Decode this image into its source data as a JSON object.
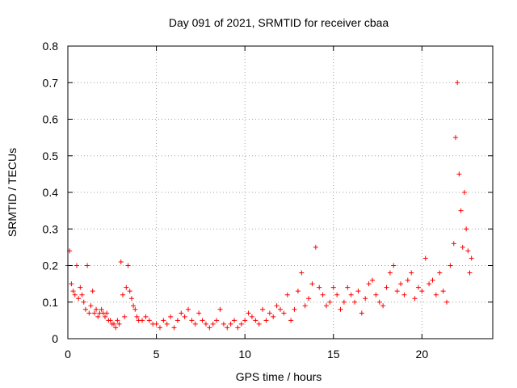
{
  "chart_data": {
    "type": "scatter",
    "title": "Day 091 of 2021, SRMTID for receiver cbaa",
    "xlabel": "GPS time / hours",
    "ylabel": "SRMTID / TECUs",
    "xlim": [
      0,
      24
    ],
    "ylim": [
      0,
      0.8
    ],
    "xticks": [
      0,
      5,
      10,
      15,
      20
    ],
    "xtick_labels": [
      "0",
      "5",
      "10",
      "15",
      "20"
    ],
    "yticks": [
      0,
      0.1,
      0.2,
      0.3,
      0.4,
      0.5,
      0.6,
      0.7,
      0.8
    ],
    "ytick_labels": [
      "0",
      "0.1",
      "0.2",
      "0.3",
      "0.4",
      "0.5",
      "0.6",
      "0.7",
      "0.8"
    ],
    "grid": true,
    "marker": "+",
    "colors": {
      "series": "#ff0000",
      "grid": "#a0a0a0",
      "axis": "#000000"
    },
    "series": [
      {
        "name": "SRMTID",
        "x": [
          0.0,
          0.1,
          0.2,
          0.3,
          0.4,
          0.5,
          0.6,
          0.7,
          0.8,
          0.9,
          1.0,
          1.1,
          1.2,
          1.3,
          1.4,
          1.5,
          1.6,
          1.7,
          1.8,
          1.9,
          2.0,
          2.1,
          2.2,
          2.3,
          2.4,
          2.5,
          2.6,
          2.7,
          2.8,
          2.9,
          3.0,
          3.1,
          3.2,
          3.3,
          3.4,
          3.5,
          3.6,
          3.7,
          3.8,
          3.9,
          4.0,
          4.2,
          4.4,
          4.6,
          4.8,
          5.0,
          5.2,
          5.4,
          5.6,
          5.8,
          6.0,
          6.2,
          6.4,
          6.6,
          6.8,
          7.0,
          7.2,
          7.4,
          7.6,
          7.8,
          8.0,
          8.2,
          8.4,
          8.6,
          8.8,
          9.0,
          9.2,
          9.4,
          9.6,
          9.8,
          10.0,
          10.2,
          10.4,
          10.6,
          10.8,
          11.0,
          11.2,
          11.4,
          11.6,
          11.8,
          12.0,
          12.2,
          12.4,
          12.6,
          12.8,
          13.0,
          13.2,
          13.4,
          13.6,
          13.8,
          14.0,
          14.2,
          14.4,
          14.6,
          14.8,
          15.0,
          15.2,
          15.4,
          15.6,
          15.8,
          16.0,
          16.2,
          16.4,
          16.6,
          16.8,
          17.0,
          17.2,
          17.4,
          17.6,
          17.8,
          18.0,
          18.2,
          18.4,
          18.6,
          18.8,
          19.0,
          19.2,
          19.4,
          19.6,
          19.8,
          20.0,
          20.2,
          20.4,
          20.6,
          20.8,
          21.0,
          21.2,
          21.4,
          21.6,
          21.8,
          21.9,
          22.0,
          22.1,
          22.2,
          22.3,
          22.4,
          22.5,
          22.6,
          22.7,
          22.8
        ],
        "y": [
          0.2,
          0.24,
          0.15,
          0.13,
          0.12,
          0.2,
          0.11,
          0.14,
          0.12,
          0.1,
          0.08,
          0.2,
          0.07,
          0.09,
          0.13,
          0.07,
          0.08,
          0.06,
          0.07,
          0.08,
          0.07,
          0.06,
          0.07,
          0.05,
          0.05,
          0.04,
          0.04,
          0.03,
          0.05,
          0.04,
          0.21,
          0.12,
          0.06,
          0.14,
          0.2,
          0.13,
          0.11,
          0.09,
          0.08,
          0.06,
          0.05,
          0.05,
          0.06,
          0.05,
          0.04,
          0.04,
          0.03,
          0.05,
          0.04,
          0.06,
          0.03,
          0.05,
          0.07,
          0.06,
          0.08,
          0.05,
          0.04,
          0.07,
          0.05,
          0.04,
          0.03,
          0.04,
          0.05,
          0.08,
          0.04,
          0.03,
          0.04,
          0.05,
          0.03,
          0.04,
          0.05,
          0.07,
          0.06,
          0.05,
          0.04,
          0.08,
          0.05,
          0.07,
          0.06,
          0.09,
          0.08,
          0.07,
          0.12,
          0.05,
          0.08,
          0.13,
          0.18,
          0.09,
          0.11,
          0.15,
          0.25,
          0.14,
          0.12,
          0.09,
          0.1,
          0.14,
          0.12,
          0.08,
          0.1,
          0.14,
          0.12,
          0.1,
          0.13,
          0.07,
          0.11,
          0.15,
          0.16,
          0.12,
          0.1,
          0.09,
          0.14,
          0.18,
          0.2,
          0.13,
          0.15,
          0.12,
          0.16,
          0.18,
          0.11,
          0.14,
          0.13,
          0.22,
          0.15,
          0.16,
          0.12,
          0.18,
          0.13,
          0.1,
          0.2,
          0.26,
          0.55,
          0.7,
          0.45,
          0.35,
          0.25,
          0.4,
          0.3,
          0.24,
          0.18,
          0.22
        ]
      }
    ]
  }
}
